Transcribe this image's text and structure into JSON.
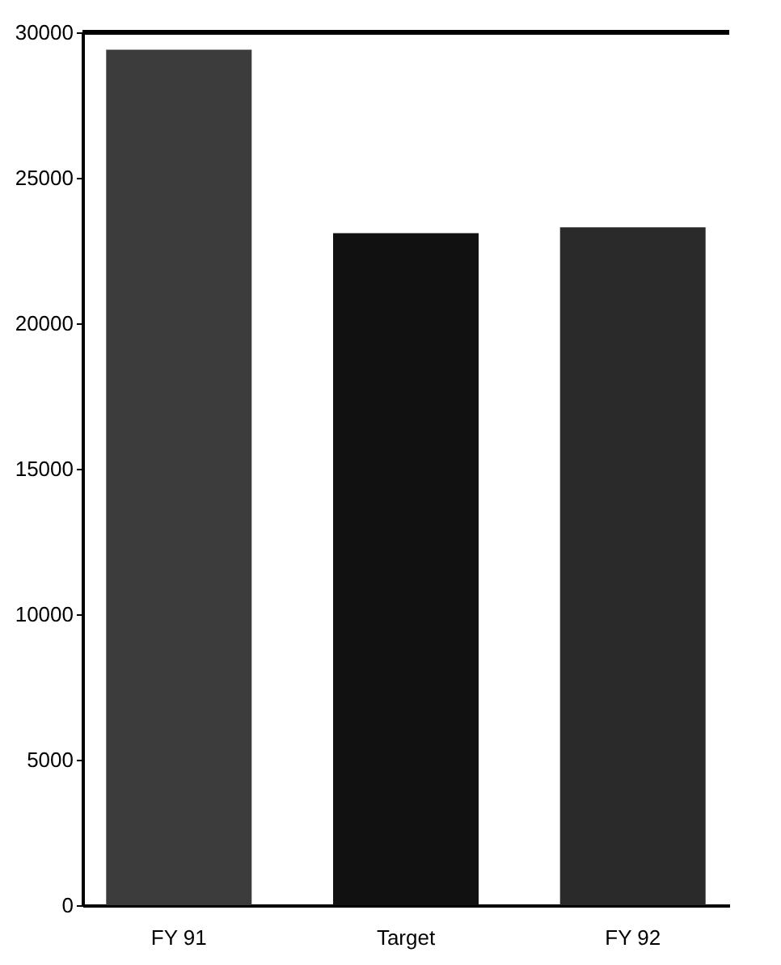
{
  "chart_data": {
    "type": "bar",
    "categories": [
      "FY 91",
      "Target",
      "FY 92"
    ],
    "values": [
      29400,
      23100,
      23300
    ],
    "colors": [
      "#3c3c3c",
      "#111111",
      "#2a2a2a"
    ],
    "ylim": [
      0,
      30000
    ],
    "yticks": [
      0,
      5000,
      10000,
      15000,
      20000,
      25000,
      30000
    ],
    "grid": false
  }
}
